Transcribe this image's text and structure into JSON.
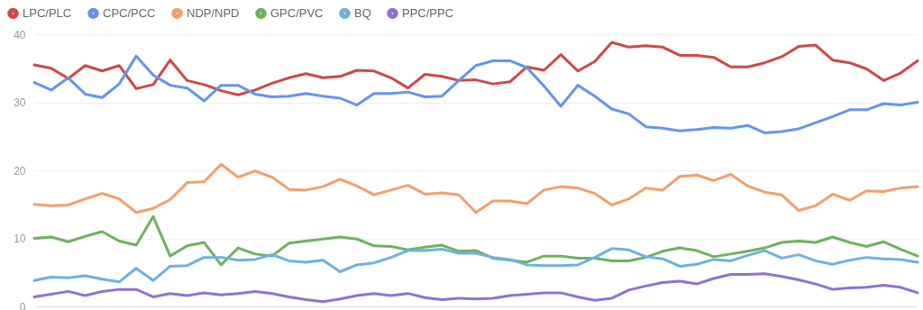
{
  "chart_data": {
    "type": "line",
    "categories": [
      null,
      null,
      null,
      null,
      null,
      null,
      null,
      null,
      null,
      null,
      null,
      null,
      null,
      null,
      null,
      null,
      null,
      null,
      null,
      null,
      null,
      null,
      null,
      null,
      null,
      null,
      null,
      null,
      null,
      null,
      null,
      null,
      null,
      null,
      null,
      null,
      null,
      null,
      null,
      null,
      null,
      null,
      null,
      null,
      null,
      null,
      null,
      null,
      null,
      null,
      null,
      null,
      null
    ],
    "series": [
      {
        "name": "LPC/PLC",
        "color": "#d04747",
        "values": [
          35.5,
          35.0,
          33.5,
          35.4,
          34.6,
          35.4,
          32.0,
          32.6,
          36.2,
          33.2,
          32.6,
          31.7,
          31.1,
          31.8,
          32.8,
          33.6,
          34.2,
          33.6,
          33.8,
          34.7,
          34.6,
          33.6,
          32.1,
          34.1,
          33.8,
          33.2,
          33.3,
          32.7,
          33.0,
          35.2,
          34.7,
          37.0,
          34.6,
          36.0,
          38.8,
          38.1,
          38.3,
          38.1,
          36.9,
          36.9,
          36.6,
          35.2,
          35.2,
          35.8,
          36.7,
          38.2,
          38.4,
          36.2,
          35.8,
          34.9,
          33.2,
          34.3,
          36.1
        ]
      },
      {
        "name": "CPC/PCC",
        "color": "#6495ed",
        "values": [
          32.9,
          31.8,
          33.6,
          31.2,
          30.7,
          32.7,
          36.8,
          34.0,
          32.5,
          32.1,
          30.2,
          32.5,
          32.5,
          31.2,
          30.8,
          30.9,
          31.3,
          30.9,
          30.6,
          29.6,
          31.3,
          31.3,
          31.5,
          30.8,
          30.9,
          33.2,
          35.4,
          36.1,
          36.1,
          35.1,
          32.4,
          29.4,
          32.5,
          30.9,
          29.0,
          28.3,
          26.4,
          26.2,
          25.8,
          26.0,
          26.3,
          26.2,
          26.6,
          25.5,
          25.7,
          26.1,
          27.0,
          27.9,
          28.9,
          28.9,
          29.8,
          29.6,
          30.0
        ]
      },
      {
        "name": "NDP/NPD",
        "color": "#f2a06a",
        "values": [
          15.0,
          14.8,
          14.9,
          15.8,
          16.6,
          15.8,
          13.8,
          14.4,
          15.7,
          18.2,
          18.3,
          20.9,
          19.0,
          19.9,
          19.0,
          17.2,
          17.1,
          17.6,
          18.7,
          17.7,
          16.4,
          17.1,
          17.8,
          16.5,
          16.7,
          16.4,
          13.8,
          15.5,
          15.5,
          15.1,
          17.1,
          17.6,
          17.4,
          16.6,
          14.9,
          15.8,
          17.4,
          17.1,
          19.1,
          19.3,
          18.5,
          19.4,
          17.7,
          16.8,
          16.4,
          14.1,
          14.8,
          16.5,
          15.6,
          17.0,
          16.9,
          17.4,
          17.6
        ]
      },
      {
        "name": "GPC/PVC",
        "color": "#6db35c",
        "values": [
          10.0,
          10.2,
          9.5,
          10.3,
          11.0,
          9.6,
          9.0,
          13.2,
          7.4,
          8.9,
          9.4,
          6.1,
          8.6,
          7.7,
          7.4,
          9.3,
          9.6,
          9.9,
          10.2,
          9.9,
          8.9,
          8.8,
          8.3,
          8.7,
          9.0,
          8.1,
          8.2,
          7.1,
          6.8,
          6.5,
          7.4,
          7.4,
          7.1,
          7.1,
          6.7,
          6.7,
          7.2,
          8.1,
          8.6,
          8.2,
          7.3,
          7.7,
          8.1,
          8.6,
          9.4,
          9.6,
          9.4,
          10.2,
          9.4,
          8.8,
          9.5,
          8.4,
          7.4
        ]
      },
      {
        "name": "BQ",
        "color": "#6fb0e3",
        "values": [
          3.8,
          4.3,
          4.2,
          4.5,
          4.0,
          3.6,
          5.6,
          3.8,
          5.9,
          6.0,
          7.2,
          7.2,
          6.8,
          6.9,
          7.6,
          6.7,
          6.5,
          6.8,
          5.1,
          6.1,
          6.4,
          7.2,
          8.2,
          8.2,
          8.4,
          7.8,
          7.8,
          7.2,
          6.9,
          6.1,
          6.0,
          6.0,
          6.1,
          7.2,
          8.5,
          8.3,
          7.3,
          7.0,
          5.9,
          6.2,
          6.9,
          6.7,
          7.5,
          8.2,
          7.1,
          7.6,
          6.7,
          6.2,
          6.8,
          7.2,
          7.0,
          6.9,
          6.5
        ]
      },
      {
        "name": "PPC/PPC",
        "color": "#8f72d4",
        "values": [
          1.4,
          1.8,
          2.2,
          1.6,
          2.2,
          2.5,
          2.5,
          1.4,
          1.9,
          1.6,
          2.0,
          1.7,
          1.9,
          2.2,
          1.9,
          1.4,
          1.0,
          0.7,
          1.1,
          1.6,
          1.9,
          1.6,
          1.9,
          1.3,
          1.0,
          1.2,
          1.1,
          1.2,
          1.6,
          1.8,
          2.0,
          2.0,
          1.4,
          0.9,
          1.2,
          2.4,
          3.0,
          3.5,
          3.7,
          3.3,
          4.1,
          4.7,
          4.7,
          4.8,
          4.4,
          3.9,
          3.3,
          2.5,
          2.7,
          2.8,
          3.1,
          2.8,
          2.0
        ]
      }
    ],
    "ylim": [
      0,
      40
    ],
    "yticks": [
      0,
      10,
      20,
      30,
      40
    ],
    "grid": "y",
    "legend": "top left",
    "tick_labels": "y"
  }
}
